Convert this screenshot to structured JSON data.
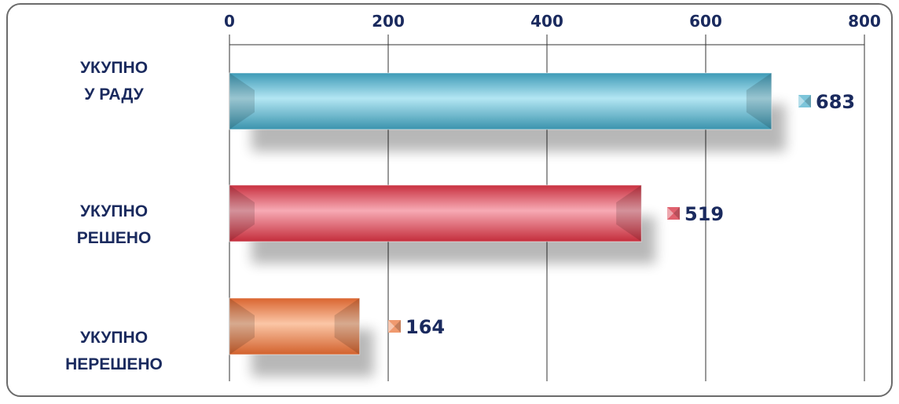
{
  "chart_data": {
    "type": "bar",
    "orientation": "horizontal",
    "categories": [
      "УКУПНО\nУ РАДУ",
      "УКУПНО\nРЕШЕНО",
      "УКУПНО\nНЕРЕШЕНО"
    ],
    "category_lines": [
      [
        "УКУПНО",
        "У РАДУ"
      ],
      [
        "УКУПНО",
        "РЕШЕНО"
      ],
      [
        "УКУПНО",
        "НЕРЕШЕНО"
      ]
    ],
    "values": [
      683,
      519,
      164
    ],
    "value_labels": [
      "683",
      "519",
      "164"
    ],
    "xlim": [
      0,
      800
    ],
    "ticks": [
      "0",
      "200",
      "400",
      "600",
      "800"
    ],
    "tick_values": [
      0,
      200,
      400,
      600,
      800
    ],
    "axis_position": "top",
    "grid": true,
    "bar_colors": [
      "#5fb8d2",
      "#e45a6c",
      "#ef8a5c"
    ],
    "label_color": "#1a2a5e"
  }
}
